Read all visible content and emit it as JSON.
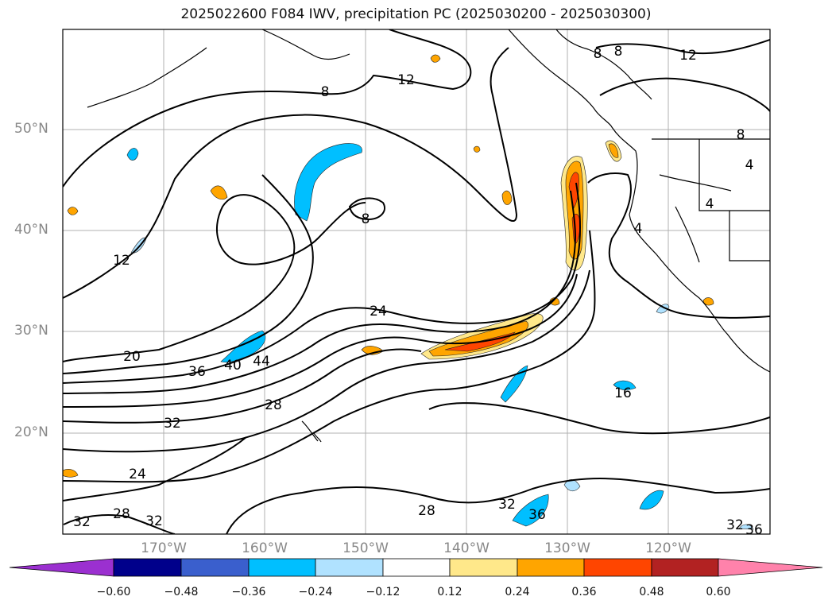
{
  "title": "2025022600 F084 IWV, precipitation PC (2025030200 - 2025030300)",
  "lat_labels": [
    "50°N",
    "40°N",
    "30°N",
    "20°N"
  ],
  "lon_labels": [
    "170°W",
    "160°W",
    "150°W",
    "140°W",
    "130°W",
    "120°W"
  ],
  "colorbar": {
    "ticks": [
      "−0.60",
      "−0.48",
      "−0.36",
      "−0.24",
      "−0.12",
      "0.12",
      "0.24",
      "0.36",
      "0.48",
      "0.60"
    ],
    "colors": [
      "#9b30d0",
      "#00008b",
      "#3a5fcd",
      "#00bfff",
      "#b0e2ff",
      "#ffffff",
      "#ffe88a",
      "#ffa500",
      "#ff4500",
      "#b22222",
      "#ff82ab"
    ]
  },
  "contour_labels": {
    "c8a": "8",
    "c8b": "8",
    "c8c": "8",
    "c8d": "8",
    "c8e": "8",
    "c12a": "12",
    "c12b": "12",
    "c12c": "12",
    "c4a": "4",
    "c4b": "4",
    "c4c": "4",
    "c24a": "24",
    "c24b": "24",
    "c20": "20",
    "c36a": "36",
    "c40": "40",
    "c44": "44",
    "c28a": "28",
    "c28b": "28",
    "c28c": "28",
    "c32a": "32",
    "c32b": "32",
    "c32c": "32",
    "c32d": "32",
    "c32e": "32",
    "c36b": "36",
    "c36c": "36",
    "c16": "16"
  }
}
